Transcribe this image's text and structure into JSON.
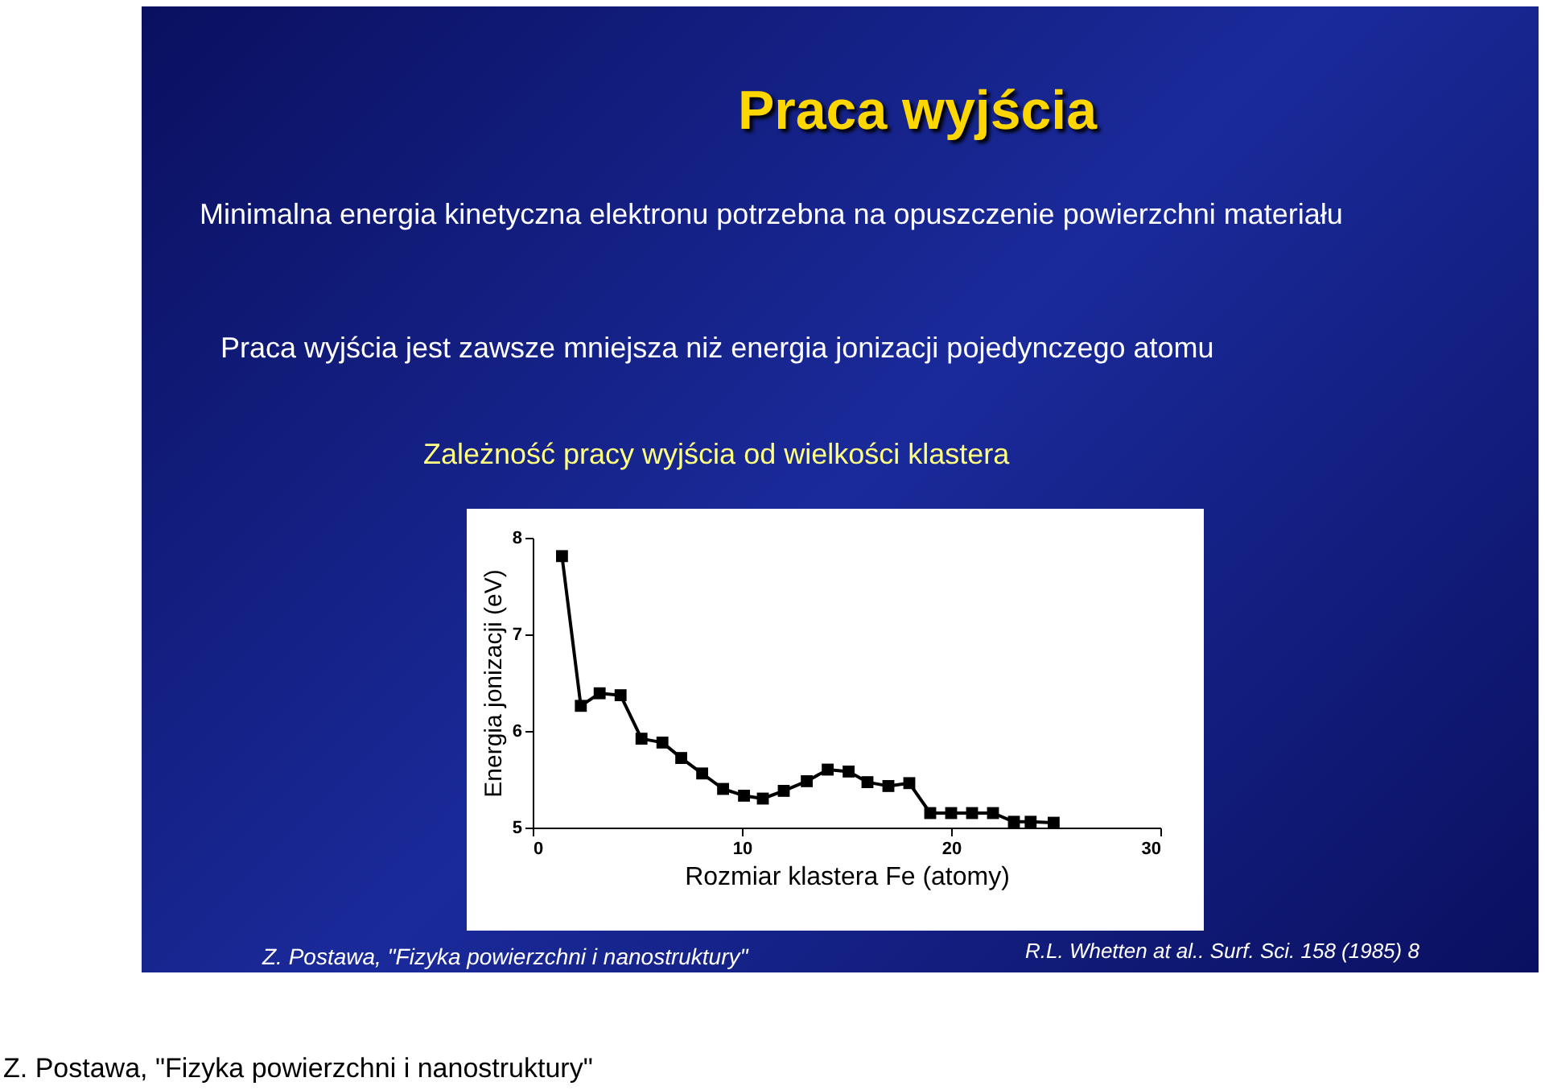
{
  "chart_data": {
    "type": "line",
    "title": "Praca wyjścia",
    "xlabel": "Rozmiar klastera Fe (atomy)",
    "ylabel": "Energia jonizacji (eV)",
    "annotations": [
      "Minimalna energia kinetyczna elektronu potrzebna na opuszczenie powierzchni materiału",
      "Praca wyjścia jest zawsze mniejsza niż energia jonizacji pojedynczego atomu",
      "Zależność pracy wyjścia od wielkości klastera",
      "Z. Postawa, \"Fizyka powierzchni i nanostruktury\"",
      "R.L. Whetten at al.. Surf. Sci. 158 (1985) 8",
      "Z. Postawa, \"Fizyka powierzchni i nanostruktury\""
    ],
    "x": [
      1.4,
      2.3,
      3.2,
      4.2,
      5.2,
      6.2,
      7.1,
      8.1,
      9.1,
      10.1,
      11,
      12,
      13.1,
      14.1,
      15.1,
      16,
      17,
      18,
      19,
      20,
      21,
      22,
      23,
      23.8,
      24.9
    ],
    "series": [
      {
        "color": "#000000",
        "values": [
          7.81,
          6.26,
          6.39,
          6.37,
          5.92,
          5.88,
          5.72,
          5.56,
          5.4,
          5.33,
          5.3,
          5.38,
          5.48,
          5.6,
          5.58,
          5.47,
          5.43,
          5.46,
          5.15,
          5.15,
          5.15,
          5.15,
          5.06,
          5.06,
          5.05
        ]
      }
    ],
    "xlim": [
      0,
      30
    ],
    "xticks": [
      0,
      10,
      20,
      30
    ],
    "ylim": [
      5,
      8
    ],
    "yticks": [
      5,
      6,
      7,
      8
    ],
    "grid": false,
    "legend": false,
    "marker": "square",
    "line_style": "solid"
  }
}
